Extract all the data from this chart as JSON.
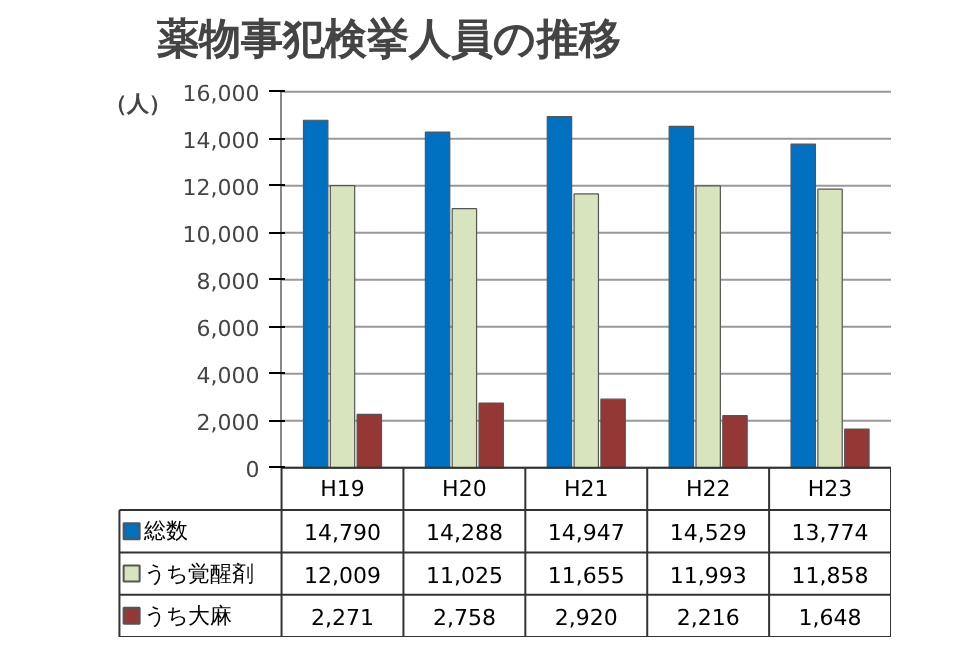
{
  "chart_data": {
    "type": "bar",
    "title": "薬物事犯検挙人員の推移",
    "ylabel": "（人）",
    "categories": [
      "H19",
      "H20",
      "H21",
      "H22",
      "H23"
    ],
    "series": [
      {
        "name": "総数",
        "color": "#0070c0",
        "values": [
          14790,
          14288,
          14947,
          14529,
          13774
        ],
        "value_labels": [
          "14,790",
          "14,288",
          "14,947",
          "14,529",
          "13,774"
        ]
      },
      {
        "name": "うち覚醒剤",
        "color": "#d7e4bd",
        "values": [
          12009,
          11025,
          11655,
          11993,
          11858
        ],
        "value_labels": [
          "12,009",
          "11,025",
          "11,655",
          "11,993",
          "11,858"
        ]
      },
      {
        "name": "うち大麻",
        "color": "#953735",
        "values": [
          2271,
          2758,
          2920,
          2216,
          1648
        ],
        "value_labels": [
          "2,271",
          "2,758",
          "2,920",
          "2,216",
          "1,648"
        ]
      }
    ],
    "ylim": [
      0,
      16000
    ],
    "yticks": [
      {
        "value": 0,
        "label": "0"
      },
      {
        "value": 2000,
        "label": "2,000"
      },
      {
        "value": 4000,
        "label": "4,000"
      },
      {
        "value": 6000,
        "label": "6,000"
      },
      {
        "value": 8000,
        "label": "8,000"
      },
      {
        "value": 10000,
        "label": "10,000"
      },
      {
        "value": 12000,
        "label": "12,000"
      },
      {
        "value": 14000,
        "label": "14,000"
      },
      {
        "value": 16000,
        "label": "16,000"
      }
    ],
    "grid": "y",
    "legend": "bottom"
  }
}
